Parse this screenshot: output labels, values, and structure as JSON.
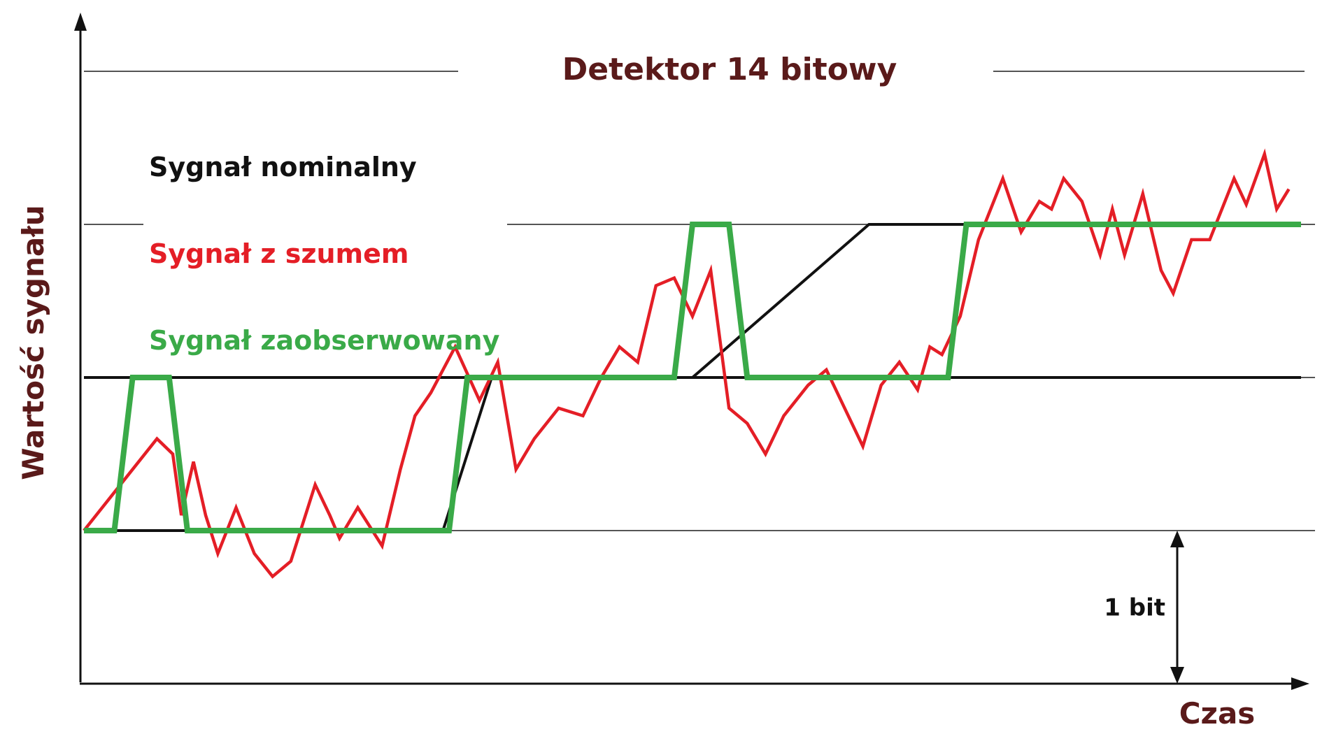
{
  "chart_data": {
    "type": "line",
    "title": "Detektor 14 bitowy",
    "xlabel": "Czas",
    "ylabel": "Wartość sygnału",
    "ylim": [
      0,
      4
    ],
    "xlim": [
      0,
      100
    ],
    "grid_levels": [
      1,
      2,
      3,
      4
    ],
    "annotation": {
      "text": "1 bit",
      "from": 0,
      "to": 1
    },
    "colors": {
      "nominal": "#111111",
      "noisy": "#e41e26",
      "observed": "#3aaa48",
      "title": "#5a1a1a",
      "grid": "#555555"
    },
    "series": [
      {
        "name": "Sygnał nominalny",
        "color": "#111111",
        "x": [
          0,
          9,
          29.5,
          33.5,
          100
        ],
        "y": [
          1,
          1,
          1,
          2,
          2
        ],
        "x2": [
          0,
          50,
          64.5,
          100
        ],
        "y2": [
          2,
          2,
          3,
          3
        ]
      },
      {
        "name": "Sygnał z szumem",
        "color": "#e41e26",
        "x": [
          0,
          3,
          6,
          7.3,
          8,
          9,
          10,
          11,
          12.5,
          14,
          15.5,
          17,
          19,
          20.2,
          21,
          22.5,
          24.5,
          26,
          27.2,
          28.5,
          30.5,
          32.5,
          34,
          35.5,
          37,
          39,
          41,
          42.5,
          44,
          45.5,
          47,
          48.5,
          50,
          51.5,
          53,
          54.5,
          56,
          57.5,
          59.5,
          61,
          62.5,
          64,
          65.5,
          67,
          68.5,
          69.5,
          70.5,
          72,
          73.5,
          75.5,
          77,
          78.5,
          79.5,
          80.5,
          82,
          83.5,
          84.5,
          85.5,
          87,
          88.5,
          89.5,
          91,
          92.5,
          94.5,
          95.5,
          97,
          98,
          99
        ],
        "y": [
          1,
          1.3,
          1.6,
          1.5,
          1.1,
          1.45,
          1.1,
          0.85,
          1.15,
          0.85,
          0.7,
          0.8,
          1.3,
          1.1,
          0.95,
          1.15,
          0.9,
          1.4,
          1.75,
          1.9,
          2.2,
          1.85,
          2.1,
          1.4,
          1.6,
          1.8,
          1.75,
          2,
          2.2,
          2.1,
          2.6,
          2.65,
          2.4,
          2.7,
          1.8,
          1.7,
          1.5,
          1.75,
          1.95,
          2.05,
          1.8,
          1.55,
          1.95,
          2.1,
          1.92,
          2.2,
          2.15,
          2.4,
          2.9,
          3.3,
          2.95,
          3.15,
          3.1,
          3.3,
          3.15,
          2.8,
          3.1,
          2.8,
          3.2,
          2.7,
          2.55,
          2.9,
          2.9,
          3.3,
          3.13,
          3.46,
          3.1,
          3.23
        ]
      },
      {
        "name": "Sygnał zaobserwowany",
        "color": "#3aaa48",
        "x": [
          0,
          2.5,
          4,
          7,
          8.5,
          30,
          31.5,
          48.5,
          50,
          53,
          54.5,
          71,
          72.5,
          100
        ],
        "y": [
          1,
          1,
          2,
          2,
          1,
          1,
          2,
          2,
          3,
          3,
          2,
          2,
          3,
          3
        ]
      }
    ]
  }
}
